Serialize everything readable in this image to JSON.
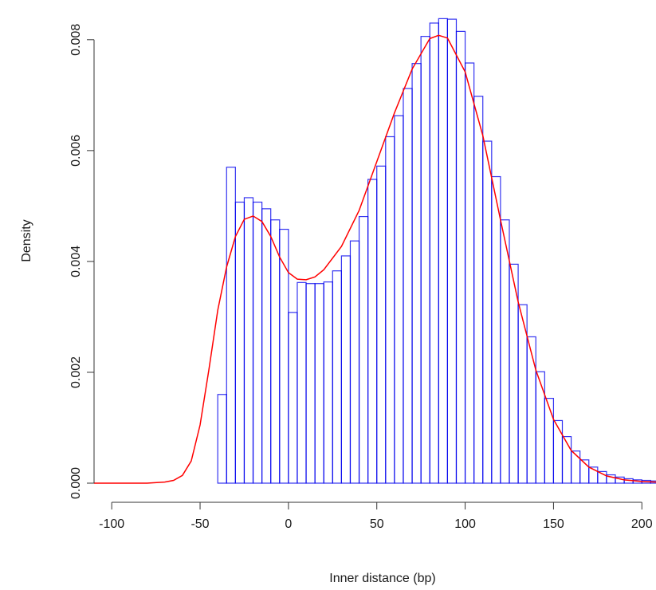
{
  "chart_data": {
    "type": "bar",
    "title": "",
    "xlabel": "Inner distance (bp)",
    "ylabel": "Density",
    "xlim": [
      -110,
      208
    ],
    "ylim": [
      0,
      0.0084
    ],
    "x_ticks": [
      {
        "value": -100,
        "label": "-100"
      },
      {
        "value": -50,
        "label": "-50"
      },
      {
        "value": 0,
        "label": "0"
      },
      {
        "value": 50,
        "label": "50"
      },
      {
        "value": 100,
        "label": "100"
      },
      {
        "value": 150,
        "label": "150"
      },
      {
        "value": 200,
        "label": "200"
      }
    ],
    "y_ticks": [
      {
        "value": 0,
        "label": "0.000"
      },
      {
        "value": 0.002,
        "label": "0.002"
      },
      {
        "value": 0.004,
        "label": "0.004"
      },
      {
        "value": 0.006,
        "label": "0.006"
      },
      {
        "value": 0.008,
        "label": "0.008"
      }
    ],
    "grid": false,
    "bar_color": "#0000ee",
    "curve_color": "#ff0000",
    "histogram": {
      "bin_width": 5,
      "bins_start": [
        -110,
        -105,
        -100,
        -95,
        -90,
        -85,
        -80,
        -75,
        -70,
        -65,
        -60,
        -55,
        -50,
        -45,
        -40,
        -35,
        -30,
        -25,
        -20,
        -15,
        -10,
        -5,
        0,
        5,
        10,
        15,
        20,
        25,
        30,
        35,
        40,
        45,
        50,
        55,
        60,
        65,
        70,
        75,
        80,
        85,
        90,
        95,
        100,
        105,
        110,
        115,
        120,
        125,
        130,
        135,
        140,
        145,
        150,
        155,
        160,
        165,
        170,
        175,
        180,
        185,
        190,
        195,
        200,
        205
      ],
      "density": [
        0,
        0,
        0,
        0,
        0,
        0,
        0,
        0,
        0,
        0,
        0,
        0,
        0,
        0,
        0.0016,
        0.0057,
        0.00507,
        0.00515,
        0.00507,
        0.00495,
        0.00475,
        0.00458,
        0.00308,
        0.00362,
        0.0036,
        0.0036,
        0.00363,
        0.00383,
        0.0041,
        0.00437,
        0.00481,
        0.00548,
        0.00572,
        0.00625,
        0.00663,
        0.00712,
        0.00757,
        0.00806,
        0.0083,
        0.00838,
        0.00837,
        0.00815,
        0.00758,
        0.00698,
        0.00617,
        0.00553,
        0.00475,
        0.00395,
        0.00322,
        0.00264,
        0.00201,
        0.00153,
        0.00113,
        0.00084,
        0.00058,
        0.00042,
        0.00029,
        0.00021,
        0.00015,
        0.00011,
        8e-05,
        6e-05,
        5e-05,
        4e-05
      ]
    },
    "density_curve": {
      "x": [
        -110,
        -100,
        -90,
        -80,
        -70,
        -65,
        -60,
        -55,
        -50,
        -45,
        -40,
        -35,
        -30,
        -25,
        -20,
        -15,
        -10,
        -5,
        0,
        5,
        10,
        15,
        20,
        30,
        40,
        50,
        60,
        70,
        80,
        85,
        90,
        100,
        110,
        120,
        130,
        140,
        150,
        160,
        170,
        180,
        190,
        200,
        208
      ],
      "y": [
        0,
        0,
        0,
        0,
        2e-05,
        5e-05,
        0.00014,
        0.0004,
        0.00105,
        0.00205,
        0.00312,
        0.0039,
        0.00445,
        0.00476,
        0.00482,
        0.00472,
        0.00445,
        0.00408,
        0.0038,
        0.00368,
        0.00367,
        0.00372,
        0.00385,
        0.00427,
        0.00492,
        0.0058,
        0.00668,
        0.00747,
        0.00802,
        0.00808,
        0.00803,
        0.00742,
        0.00627,
        0.00475,
        0.00327,
        0.00204,
        0.00115,
        0.00059,
        0.00029,
        0.00013,
        6e-05,
        3e-05,
        2e-05
      ]
    }
  }
}
